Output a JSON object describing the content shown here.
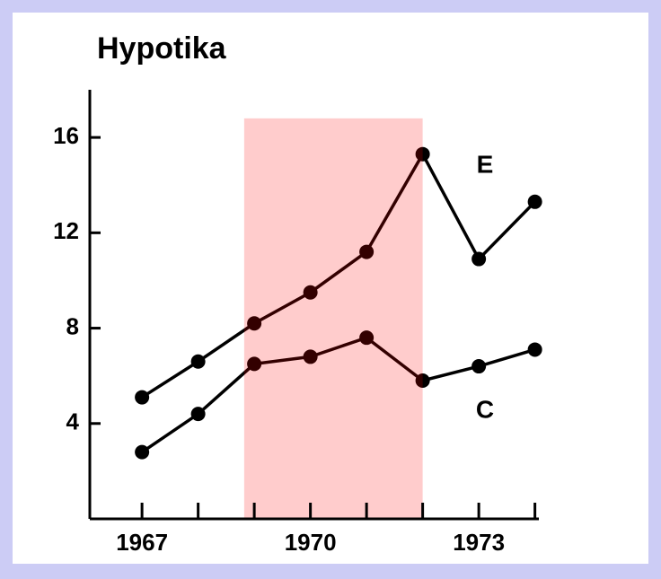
{
  "chart_data": {
    "type": "line",
    "title": "Hypotika",
    "x": [
      1967,
      1968,
      1969,
      1970,
      1971,
      1972,
      1973,
      1974
    ],
    "series": [
      {
        "name": "E",
        "color": "#000000",
        "values": [
          5.1,
          6.6,
          8.2,
          9.5,
          11.2,
          15.3,
          10.9,
          13.3
        ]
      },
      {
        "name": "C",
        "color": "#000000",
        "values": [
          2.8,
          4.4,
          6.5,
          6.8,
          7.6,
          5.8,
          6.4,
          7.1
        ]
      }
    ],
    "xlim": [
      1966.07,
      1974.07
    ],
    "xticks": [
      1967,
      1970,
      1973
    ],
    "minor_xticks": [
      1967,
      1968,
      1969,
      1970,
      1971,
      1972,
      1973,
      1974
    ],
    "ylim": [
      0,
      18
    ],
    "yticks": [
      4,
      8,
      12,
      16
    ],
    "shaded_region": {
      "x": [
        1968.82,
        1972
      ],
      "y": [
        0,
        16.8
      ],
      "color": "#ff0000"
    }
  }
}
